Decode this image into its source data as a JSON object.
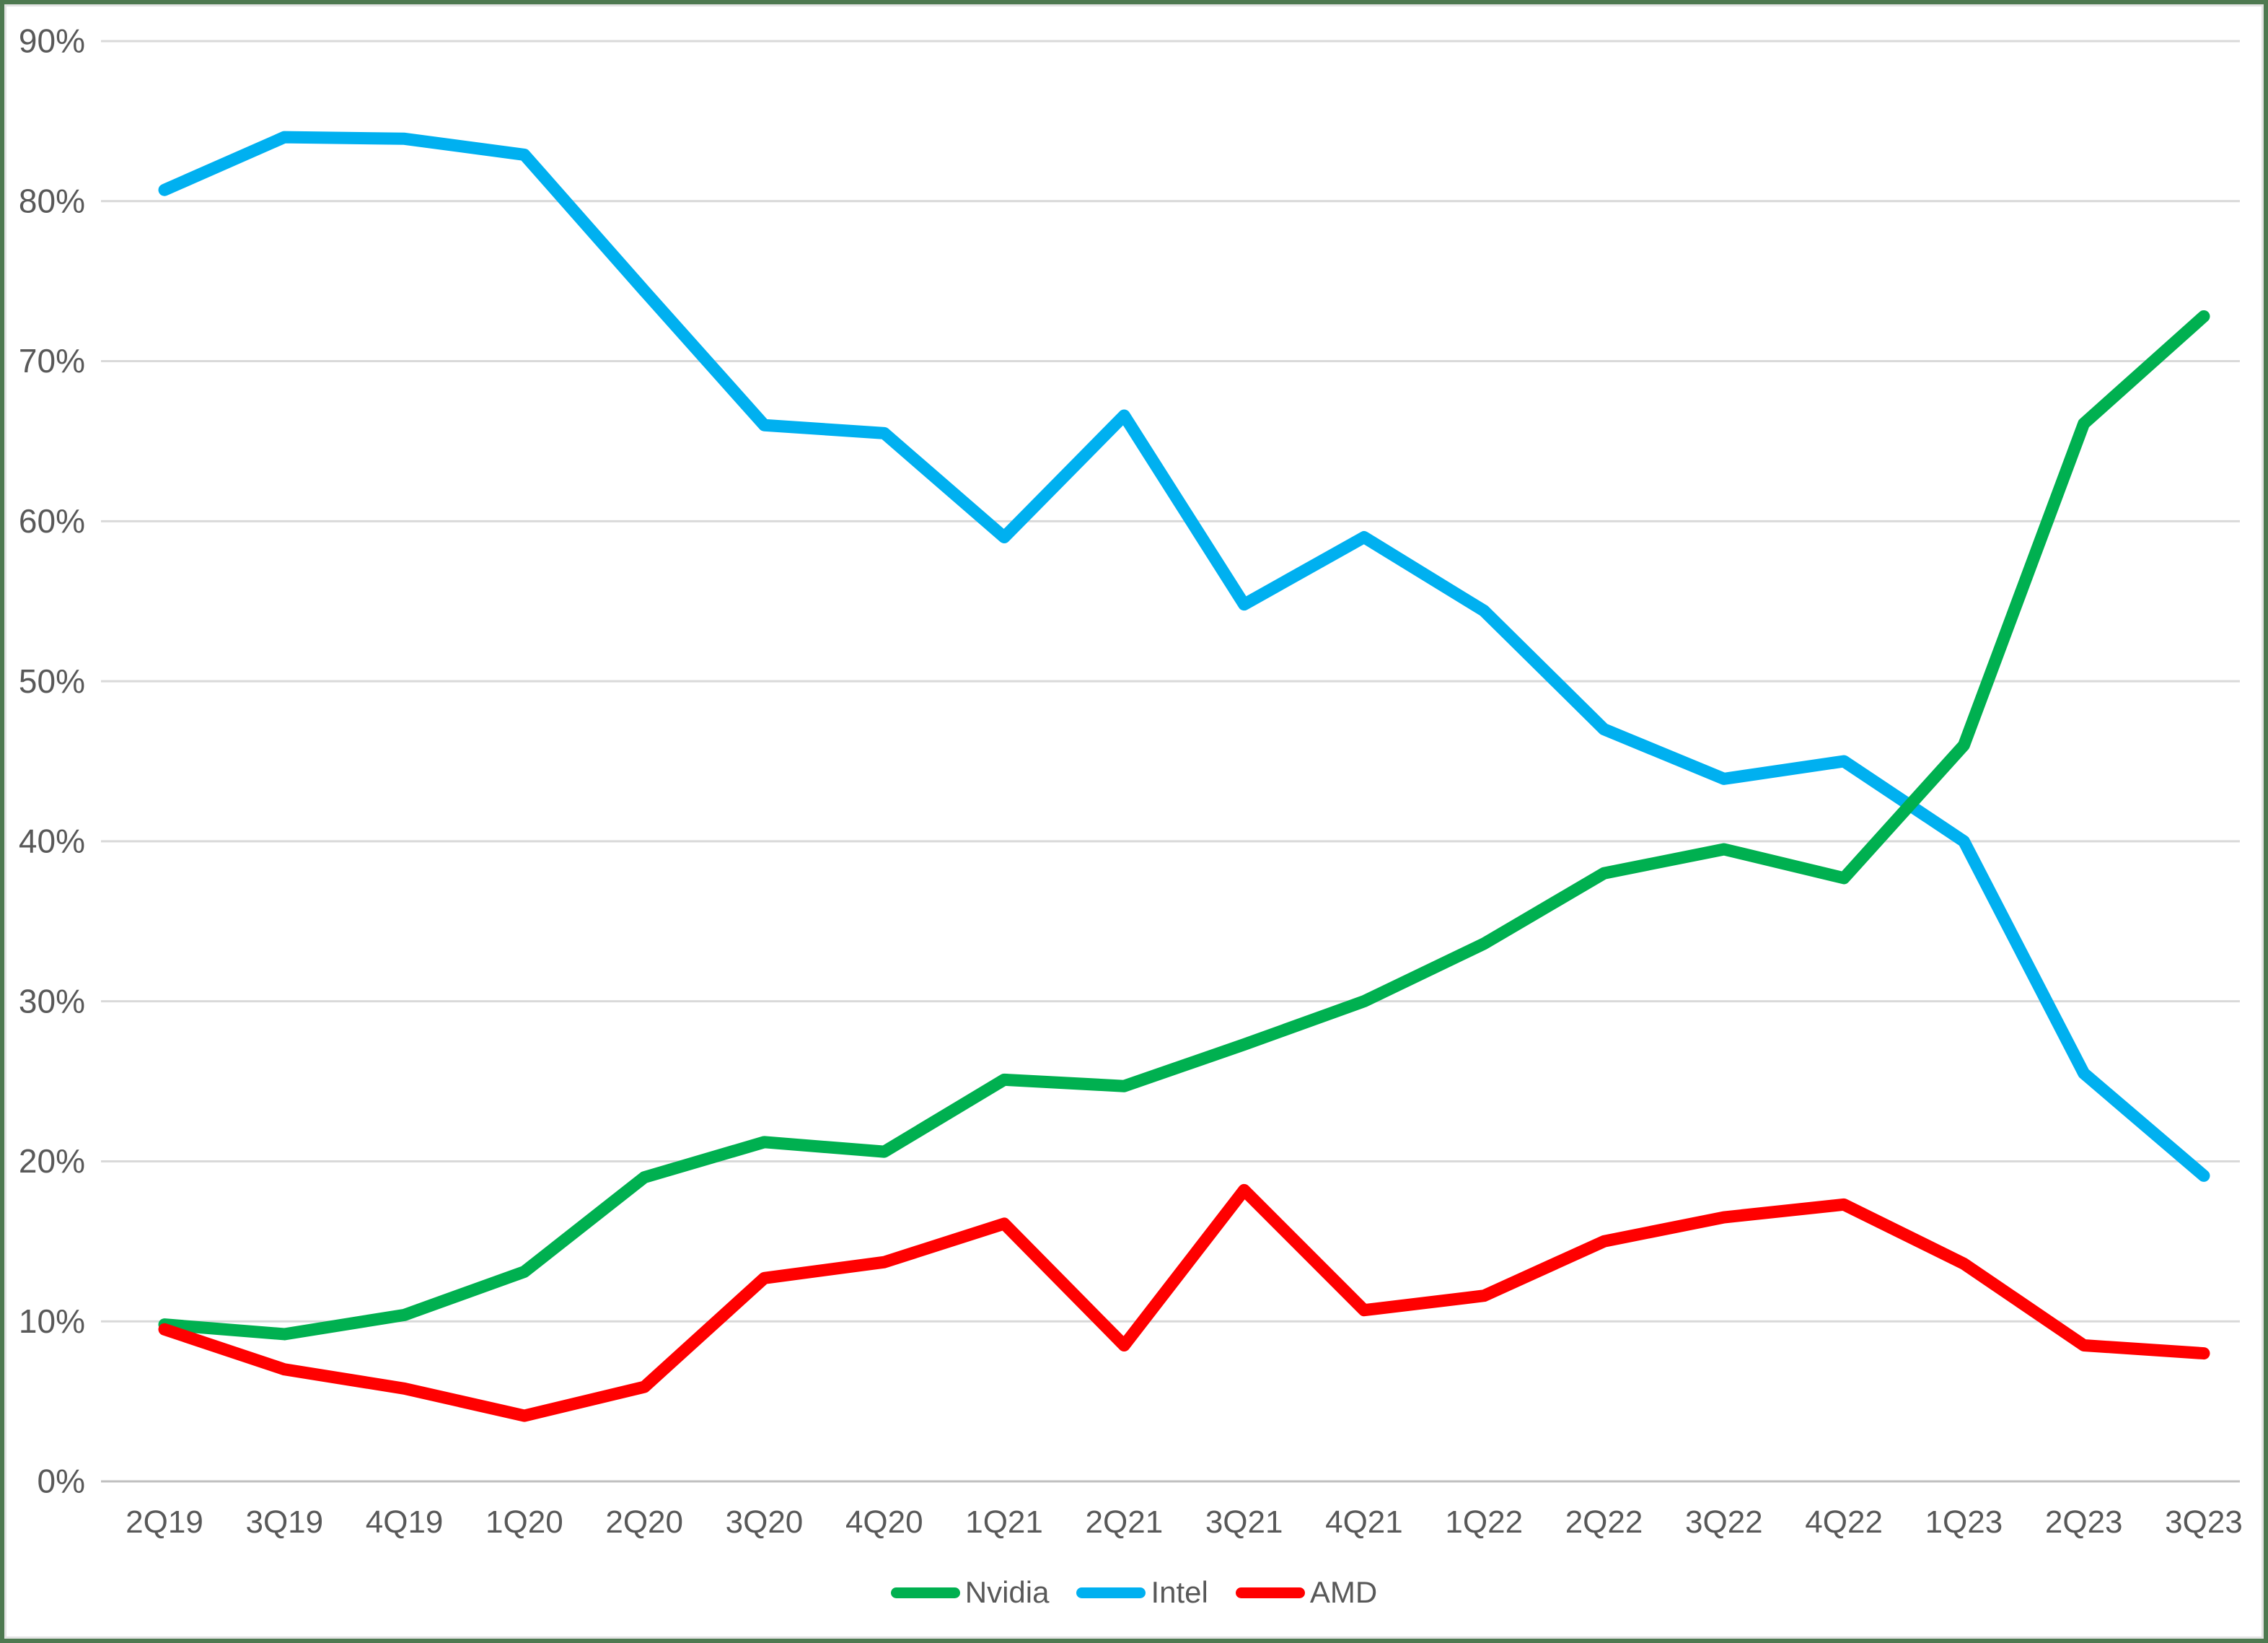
{
  "chart_data": {
    "type": "line",
    "categories": [
      "2Q19",
      "3Q19",
      "4Q19",
      "1Q20",
      "2Q20",
      "3Q20",
      "4Q20",
      "1Q21",
      "2Q21",
      "3Q21",
      "4Q21",
      "1Q22",
      "2Q22",
      "3Q22",
      "4Q22",
      "1Q23",
      "2Q23",
      "3Q23"
    ],
    "series": [
      {
        "name": "Nvidia",
        "color": "#00B050",
        "values": [
          9.8,
          9.2,
          10.4,
          13.1,
          19.0,
          21.2,
          20.6,
          25.1,
          24.7,
          27.3,
          30.0,
          33.6,
          38.0,
          39.5,
          37.7,
          46.0,
          66.1,
          72.8
        ]
      },
      {
        "name": "Intel",
        "color": "#00B0F0",
        "values": [
          80.7,
          84.0,
          83.9,
          82.9,
          74.4,
          66.0,
          65.5,
          59.0,
          66.6,
          54.8,
          59.0,
          54.4,
          47.0,
          43.9,
          45.0,
          40.0,
          25.5,
          19.1
        ]
      },
      {
        "name": "AMD",
        "color": "#FF0000",
        "values": [
          9.5,
          7.0,
          5.8,
          4.1,
          5.9,
          12.7,
          13.7,
          16.1,
          8.5,
          18.2,
          10.7,
          11.6,
          15.0,
          16.5,
          17.3,
          13.6,
          8.5,
          8.0
        ]
      }
    ],
    "z_order": [
      "Intel",
      "Nvidia",
      "AMD"
    ],
    "title": "",
    "xlabel": "",
    "ylabel": "",
    "ylim": [
      0,
      90
    ],
    "yticks": [
      0,
      10,
      20,
      30,
      40,
      50,
      60,
      70,
      80,
      90
    ],
    "ytick_suffix": "%",
    "grid": true,
    "legend_position": "bottom"
  },
  "legend": {
    "items": [
      {
        "label": "Nvidia",
        "color": "#00B050"
      },
      {
        "label": "Intel",
        "color": "#00B0F0"
      },
      {
        "label": "AMD",
        "color": "#FF0000"
      }
    ]
  },
  "style": {
    "background": "#FFFFFF",
    "frame_border_color": "#4E7950",
    "inner_border_color": "#E3E3E3",
    "gridline_color": "#D9D9D9",
    "axis_line_color": "#BFBFBF",
    "tick_label_color": "#595959"
  }
}
